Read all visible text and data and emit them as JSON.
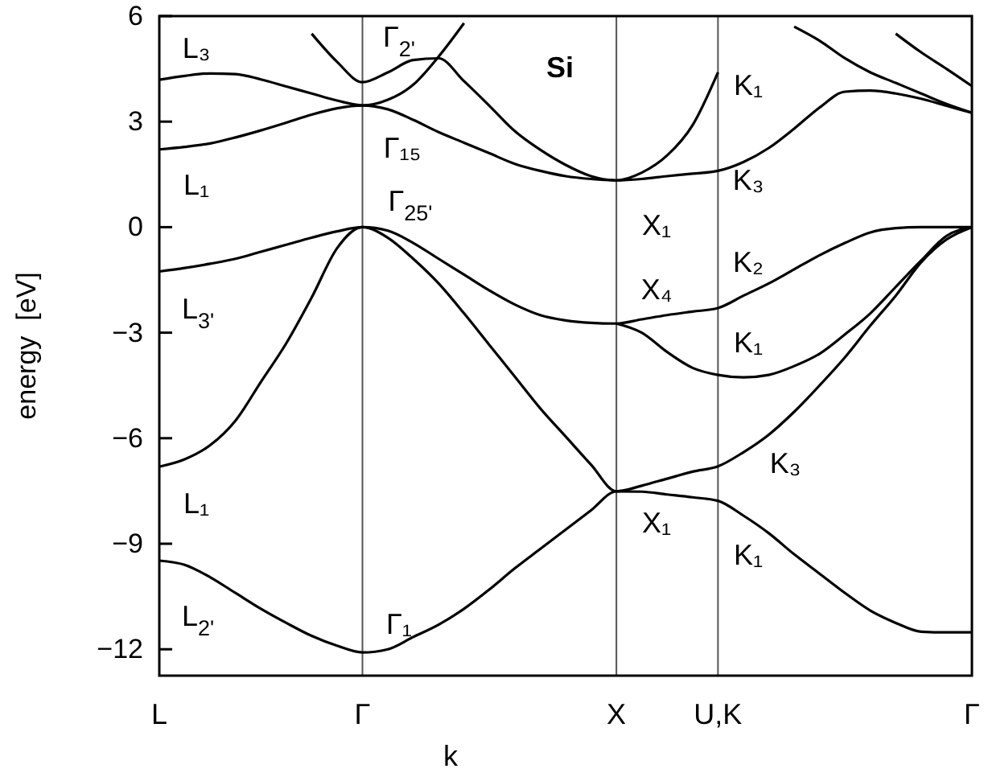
{
  "chart_data": {
    "type": "line",
    "xlabel": "k",
    "ylabel": "energy  [eV]",
    "categories": [
      "L",
      null,
      null,
      null,
      null,
      null,
      null,
      null,
      "Γ",
      null,
      null,
      null,
      null,
      null,
      null,
      null,
      null,
      null,
      "X",
      null,
      null,
      null,
      "U,K",
      null,
      null,
      null,
      null,
      null,
      null,
      null,
      null,
      null,
      "Γ"
    ],
    "ylim": [
      -12.75,
      6
    ],
    "yticks": [
      -12,
      -9,
      -6,
      -3,
      0,
      3,
      6
    ],
    "grid": false,
    "marker": "none",
    "line_style": "solid",
    "ref_lines": [
      {
        "axis": "x",
        "value": "Γ",
        "color": "#555555"
      },
      {
        "axis": "x",
        "value": "X",
        "color": "#555555"
      },
      {
        "axis": "x",
        "value": "U,K",
        "color": "#555555"
      }
    ],
    "series": [
      {
        "color": "#000000",
        "values": [
          -9.48,
          -9.6,
          -9.95,
          -10.4,
          -10.85,
          -11.25,
          -11.62,
          -11.9,
          -12.09,
          -12.0,
          -11.65,
          -11.3,
          -10.85,
          -10.3,
          -9.7,
          -9.15,
          -8.6,
          -8.05,
          -7.51,
          -7.52,
          -7.6,
          -7.68,
          -7.78,
          -8.2,
          -8.7,
          -9.3,
          -9.85,
          -10.4,
          -10.9,
          -11.25,
          -11.5,
          -11.52,
          -11.52
        ]
      },
      {
        "color": "#000000",
        "values": [
          -6.81,
          -6.6,
          -6.2,
          -5.5,
          -4.4,
          -3.3,
          -2.0,
          -0.6,
          0,
          -0.3,
          -0.9,
          -1.6,
          -2.45,
          -3.35,
          -4.25,
          -5.15,
          -5.95,
          -6.75,
          -7.51,
          -7.35,
          -7.15,
          -6.95,
          -6.8,
          -6.4,
          -5.9,
          -5.25,
          -4.5,
          -3.7,
          -2.8,
          -1.95,
          -1.0,
          -0.35,
          0
        ]
      },
      {
        "color": "#000000",
        "values": [
          -1.26,
          -1.16,
          -1.04,
          -0.9,
          -0.7,
          -0.5,
          -0.3,
          -0.12,
          0,
          -0.1,
          -0.45,
          -0.9,
          -1.35,
          -1.8,
          -2.2,
          -2.5,
          -2.65,
          -2.72,
          -2.74,
          -2.62,
          -2.5,
          -2.4,
          -2.3,
          -1.95,
          -1.6,
          -1.2,
          -0.8,
          -0.45,
          -0.15,
          -0.03,
          0,
          0,
          0
        ]
      },
      {
        "color": "#000000",
        "values": [
          null,
          null,
          null,
          null,
          null,
          null,
          null,
          null,
          null,
          null,
          null,
          null,
          null,
          null,
          null,
          null,
          null,
          null,
          -2.74,
          -3.0,
          -3.55,
          -4.0,
          -4.2,
          -4.27,
          -4.2,
          -3.95,
          -3.6,
          -3.05,
          -2.45,
          -1.7,
          -0.95,
          -0.25,
          0
        ]
      },
      {
        "color": "#000000",
        "values": [
          2.21,
          2.28,
          2.38,
          2.55,
          2.75,
          2.97,
          3.2,
          3.38,
          3.46,
          3.35,
          3.05,
          2.7,
          2.4,
          2.1,
          1.8,
          1.6,
          1.45,
          1.37,
          1.33,
          1.37,
          1.45,
          1.52,
          1.6,
          1.85,
          2.25,
          2.8,
          3.4,
          3.85,
          3.88,
          3.8,
          3.65,
          3.45,
          3.25
        ]
      },
      {
        "color": "#000000",
        "values": [
          4.19,
          4.3,
          4.37,
          4.35,
          4.2,
          4.0,
          3.8,
          3.6,
          3.46,
          3.62,
          4.05,
          4.85,
          5.8,
          null,
          null,
          null,
          null,
          null,
          null,
          null,
          null,
          null,
          null,
          null,
          null,
          null,
          null,
          null,
          null,
          null,
          null,
          null,
          null
        ]
      },
      {
        "color": "#000000",
        "values": [
          null,
          null,
          null,
          null,
          null,
          null,
          5.5,
          4.7,
          4.12,
          4.4,
          4.75,
          4.8,
          4.15,
          3.45,
          2.73,
          2.2,
          1.77,
          1.45,
          1.33,
          1.55,
          2.04,
          2.9,
          4.4,
          null,
          null,
          null,
          null,
          null,
          null,
          null,
          null,
          null,
          null
        ]
      },
      {
        "color": "#000000",
        "values": [
          null,
          null,
          null,
          null,
          null,
          null,
          null,
          null,
          null,
          null,
          null,
          null,
          null,
          null,
          null,
          null,
          null,
          null,
          null,
          null,
          null,
          null,
          null,
          null,
          null,
          5.7,
          5.3,
          4.8,
          4.4,
          4.1,
          3.8,
          3.5,
          3.25
        ]
      },
      {
        "color": "#000000",
        "values": [
          null,
          null,
          null,
          null,
          null,
          null,
          null,
          null,
          null,
          null,
          null,
          null,
          null,
          null,
          null,
          null,
          null,
          null,
          null,
          null,
          null,
          null,
          null,
          null,
          null,
          null,
          null,
          null,
          null,
          5.5,
          4.97,
          4.5,
          4.01
        ]
      }
    ],
    "annotations": [
      "L₃",
      "L₁",
      "L$_{3'}$",
      "L₁",
      "L$_{2'}$",
      "Γ$_{2'}$",
      "Γ₁₅",
      "Γ$_{25'}$",
      "Γ₁",
      "Si",
      "X₁",
      "X₄",
      "X₁",
      "K₁",
      "K₃",
      "K₂",
      "K₁",
      "K₃",
      "K₁"
    ]
  }
}
